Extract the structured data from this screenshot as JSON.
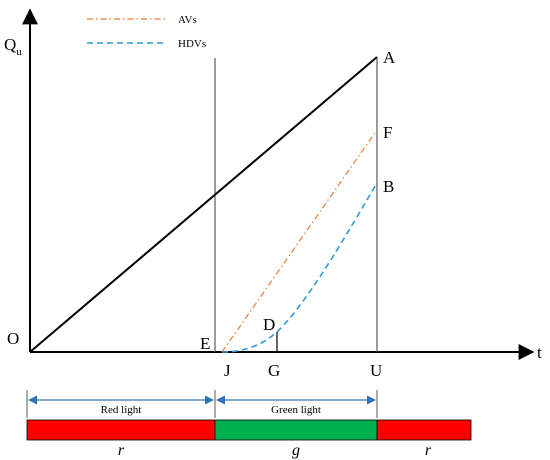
{
  "axes": {
    "y_label_main": "Q",
    "y_label_sub": "u",
    "x_label": "t",
    "origin_label": "O"
  },
  "legend": {
    "items": [
      {
        "label": "AVs",
        "color": "#ED7D31",
        "style": "dash-dot"
      },
      {
        "label": "HDVs",
        "color": "#2E9BD6",
        "style": "dashed"
      }
    ]
  },
  "points": {
    "A": "A",
    "F": "F",
    "B": "B",
    "D": "D",
    "E": "E",
    "J": "J",
    "G": "G",
    "U": "U"
  },
  "phases": {
    "red_label": "Red light",
    "green_label": "Green light",
    "red_symbol": "r",
    "green_symbol": "g",
    "red_color": "#FF0000",
    "green_color": "#00B050"
  },
  "colors": {
    "cumulative_line": "#000000",
    "vertical_line": "#595959",
    "interval_arrow": "#2E75B6"
  }
}
